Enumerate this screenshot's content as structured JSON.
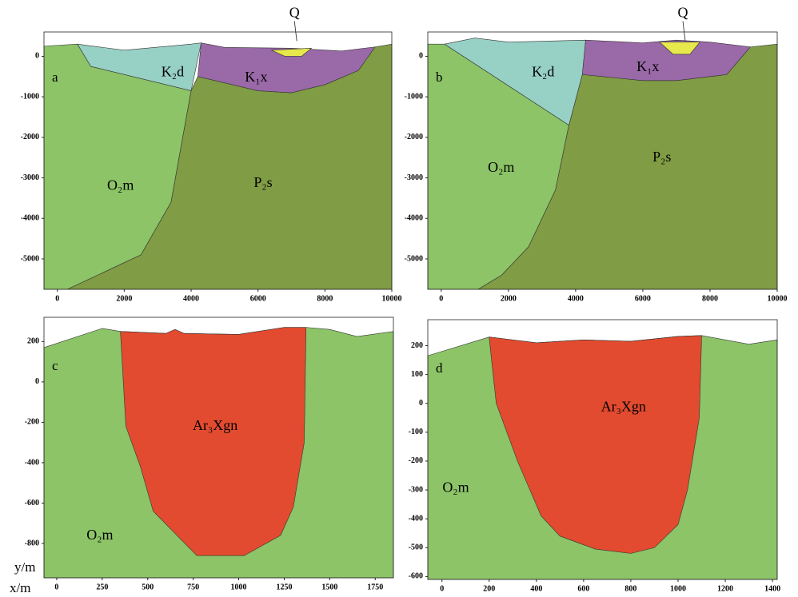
{
  "chart_data": [
    {
      "type": "section",
      "label": "a",
      "xlim": [
        -400,
        10000
      ],
      "ylim": [
        -5750,
        600
      ],
      "xticks": [
        0,
        2000,
        4000,
        6000,
        8000,
        10000
      ],
      "yticks": [
        0,
        -1000,
        -2000,
        -3000,
        -4000,
        -5000
      ],
      "units": [
        {
          "name": "O₂m",
          "color": "#8cc467",
          "x": [
            -400,
            600,
            1000,
            4000,
            3400,
            2500,
            300,
            -400
          ],
          "y": [
            250,
            300,
            -250,
            -850,
            -3600,
            -4900,
            -5750,
            -5750
          ]
        },
        {
          "name": "P₂s",
          "color": "#809c44",
          "x": [
            4200,
            6000,
            7000,
            8000,
            9000,
            9500,
            10000,
            10000,
            300,
            2500,
            3400,
            4000
          ],
          "y": [
            -500,
            -850,
            -900,
            -700,
            -350,
            230,
            300,
            -5750,
            -5750,
            -4900,
            -3600,
            -850
          ]
        },
        {
          "name": "K₂d",
          "color": "#97d0c4",
          "x": [
            600,
            2000,
            4000,
            4300,
            4000,
            1000
          ],
          "y": [
            300,
            150,
            300,
            330,
            -850,
            -250
          ]
        },
        {
          "name": "K₁x",
          "color": "#9a69a8",
          "x": [
            4300,
            5000,
            7000,
            8500,
            9500,
            9000,
            8000,
            7000,
            6000,
            4200
          ],
          "y": [
            330,
            220,
            200,
            130,
            230,
            -350,
            -700,
            -900,
            -850,
            -500
          ]
        },
        {
          "name": "Q",
          "color": "#e6e84c",
          "x": [
            6400,
            7600,
            7300,
            6800
          ],
          "y": [
            150,
            200,
            0,
            0
          ]
        }
      ]
    },
    {
      "type": "section",
      "label": "b",
      "xlim": [
        -400,
        10000
      ],
      "ylim": [
        -5750,
        600
      ],
      "xticks": [
        0,
        2000,
        4000,
        6000,
        8000,
        10000
      ],
      "yticks": [
        0,
        -1000,
        -2000,
        -3000,
        -4000,
        -5000
      ],
      "units": [
        {
          "name": "O₂m",
          "color": "#8cc467",
          "x": [
            -400,
            100,
            3800,
            3400,
            2600,
            1800,
            1100,
            -400
          ],
          "y": [
            300,
            300,
            -1700,
            -3300,
            -4700,
            -5400,
            -5750,
            -5750
          ]
        },
        {
          "name": "P₂s",
          "color": "#809c44",
          "x": [
            4200,
            6000,
            7000,
            8500,
            9200,
            10000,
            10000,
            1100,
            1800,
            2600,
            3400,
            3800
          ],
          "y": [
            -450,
            -600,
            -600,
            -450,
            230,
            300,
            -5750,
            -5750,
            -5400,
            -4700,
            -3300,
            -1700
          ]
        },
        {
          "name": "K₂d",
          "color": "#97d0c4",
          "x": [
            100,
            1000,
            2000,
            4300,
            4200,
            3800
          ],
          "y": [
            300,
            450,
            350,
            400,
            -450,
            -1700
          ]
        },
        {
          "name": "K₁x",
          "color": "#9a69a8",
          "x": [
            4300,
            6000,
            7000,
            8000,
            9200,
            8500,
            7000,
            6000,
            4200
          ],
          "y": [
            400,
            330,
            400,
            350,
            230,
            -450,
            -600,
            -600,
            -450
          ]
        },
        {
          "name": "Q",
          "color": "#e6e84c",
          "x": [
            6500,
            7700,
            7400,
            6900
          ],
          "y": [
            350,
            350,
            50,
            50
          ]
        }
      ]
    },
    {
      "type": "section",
      "label": "c",
      "xlabel": "x/m",
      "ylabel": "y/m",
      "xlim": [
        -70,
        1850
      ],
      "ylim": [
        -970,
        320
      ],
      "xticks": [
        0,
        250,
        500,
        750,
        1000,
        1250,
        1500,
        1750
      ],
      "yticks": [
        200,
        0,
        -200,
        -400,
        -600,
        -800
      ],
      "units": [
        {
          "name": "O₂m",
          "color": "#8cc467",
          "x": [
            -70,
            250,
            350,
            600,
            650,
            700,
            1000,
            1250,
            1370,
            1500,
            1650,
            1850,
            1850,
            -70
          ],
          "y": [
            170,
            265,
            250,
            240,
            260,
            240,
            235,
            270,
            270,
            260,
            225,
            250,
            -970,
            -970
          ]
        },
        {
          "name": "Ar₃Xgn",
          "color": "#e24b2f",
          "x": [
            350,
            600,
            650,
            700,
            1000,
            1250,
            1370,
            1360,
            1300,
            1230,
            1030,
            770,
            530,
            460,
            380
          ],
          "y": [
            250,
            240,
            260,
            240,
            235,
            270,
            270,
            -300,
            -620,
            -760,
            -860,
            -860,
            -640,
            -420,
            -220
          ]
        }
      ]
    },
    {
      "type": "section",
      "label": "d",
      "xlim": [
        -60,
        1420
      ],
      "ylim": [
        -610,
        290
      ],
      "xticks": [
        0,
        200,
        400,
        600,
        800,
        1000,
        1200,
        1400
      ],
      "yticks": [
        200,
        100,
        0,
        -100,
        -200,
        -300,
        -400,
        -500,
        -600
      ],
      "units": [
        {
          "name": "O₂m",
          "color": "#8cc467",
          "x": [
            -60,
            200,
            400,
            500,
            600,
            800,
            1000,
            1100,
            1300,
            1420,
            1420,
            -60
          ],
          "y": [
            165,
            230,
            210,
            215,
            220,
            215,
            232,
            235,
            205,
            220,
            -610,
            -610
          ]
        },
        {
          "name": "Ar₃Xgn",
          "color": "#e24b2f",
          "x": [
            200,
            400,
            500,
            600,
            800,
            1000,
            1100,
            1090,
            1040,
            1000,
            900,
            800,
            650,
            500,
            420,
            320,
            230,
            210
          ],
          "y": [
            230,
            210,
            215,
            220,
            215,
            232,
            235,
            -50,
            -300,
            -420,
            -500,
            -520,
            -505,
            -460,
            -390,
            -200,
            0,
            150
          ]
        }
      ]
    }
  ]
}
